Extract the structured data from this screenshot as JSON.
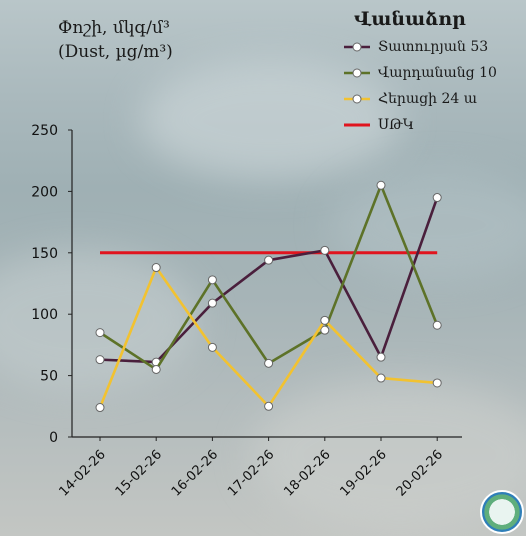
{
  "y_title_line1": "Փոշի, մկգ/մ³",
  "y_title_line2": "(Dust, µg/m³)",
  "legend_title": "Վանաձոր",
  "chart_data": {
    "type": "line",
    "categories": [
      "14-02-26",
      "15-02-26",
      "16-02-26",
      "17-02-26",
      "18-02-26",
      "19-02-26",
      "20-02-26"
    ],
    "ylim": [
      0,
      250
    ],
    "yticks": [
      0,
      50,
      100,
      150,
      200,
      250
    ],
    "series": [
      {
        "name": "Տատուրյան 53",
        "color": "#4a1f3c",
        "values": [
          63,
          61,
          109,
          144,
          152,
          65,
          195
        ]
      },
      {
        "name": "Վարդանանց 10",
        "color": "#5d7228",
        "values": [
          85,
          55,
          128,
          60,
          87,
          205,
          91
        ]
      },
      {
        "name": "Հերացի 24 ա",
        "color": "#f2c230",
        "values": [
          24,
          138,
          73,
          25,
          95,
          48,
          44
        ]
      }
    ],
    "threshold": {
      "name": "ՍԹԿ",
      "value": 150,
      "color": "#e0141e"
    }
  }
}
